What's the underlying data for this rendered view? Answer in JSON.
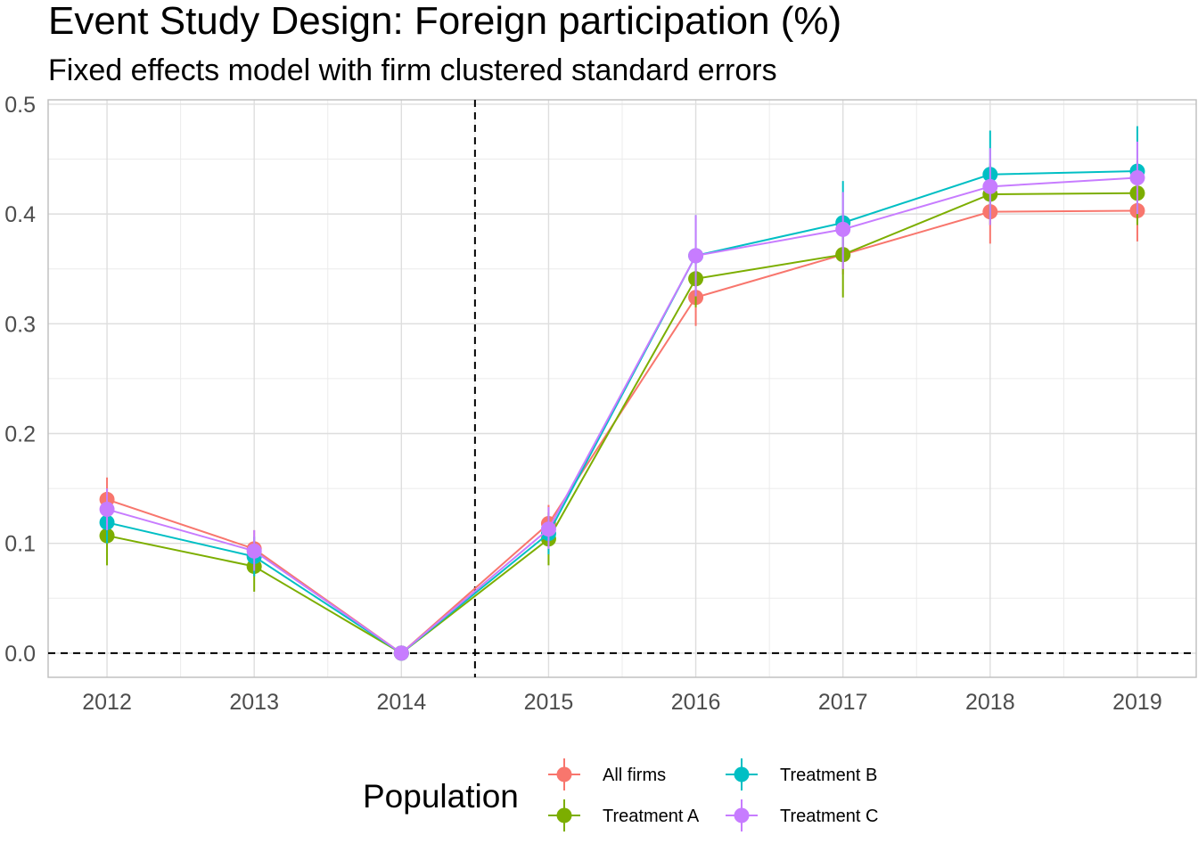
{
  "chart_data": {
    "type": "line",
    "title": "Event Study Design: Foreign participation (%)",
    "subtitle": "Fixed effects model with firm clustered standard errors",
    "xlabel": "",
    "ylabel": "",
    "categories": [
      "2012",
      "2013",
      "2014",
      "2015",
      "2016",
      "2017",
      "2018",
      "2019"
    ],
    "ylim": [
      -0.022,
      0.504
    ],
    "yticks": [
      0.0,
      0.1,
      0.2,
      0.3,
      0.4,
      0.5
    ],
    "ytick_labels": [
      "0.0",
      "0.1",
      "0.2",
      "0.3",
      "0.4",
      "0.5"
    ],
    "grid": true,
    "reference_lines": {
      "horizontal_y": 0.0,
      "vertical_between": [
        "2014",
        "2015"
      ],
      "style": "dashed"
    },
    "legend": {
      "title": "Population",
      "position": "bottom"
    },
    "series": [
      {
        "name": "All firms",
        "color": "#F8766D",
        "values": [
          0.14,
          0.095,
          0.0,
          0.118,
          0.324,
          0.363,
          0.402,
          0.403
        ],
        "lower": [
          0.12,
          0.078,
          0.0,
          0.1,
          0.298,
          0.345,
          0.373,
          0.375
        ],
        "upper": [
          0.16,
          0.112,
          0.0,
          0.135,
          0.35,
          0.382,
          0.43,
          0.43
        ]
      },
      {
        "name": "Treatment A",
        "color": "#7CAE00",
        "values": [
          0.107,
          0.079,
          0.0,
          0.104,
          0.341,
          0.363,
          0.418,
          0.419
        ],
        "lower": [
          0.08,
          0.056,
          0.0,
          0.08,
          0.315,
          0.324,
          0.39,
          0.39
        ],
        "upper": [
          0.134,
          0.1,
          0.0,
          0.128,
          0.368,
          0.398,
          0.446,
          0.448
        ]
      },
      {
        "name": "Treatment B",
        "color": "#00BFC4",
        "values": [
          0.119,
          0.088,
          0.0,
          0.109,
          0.362,
          0.392,
          0.436,
          0.439
        ],
        "lower": [
          0.1,
          0.07,
          0.0,
          0.09,
          0.325,
          0.355,
          0.395,
          0.4
        ],
        "upper": [
          0.138,
          0.106,
          0.0,
          0.128,
          0.399,
          0.43,
          0.476,
          0.48
        ]
      },
      {
        "name": "Treatment C",
        "color": "#C77CFF",
        "values": [
          0.131,
          0.093,
          0.0,
          0.113,
          0.362,
          0.386,
          0.425,
          0.433
        ],
        "lower": [
          0.112,
          0.075,
          0.0,
          0.095,
          0.325,
          0.35,
          0.39,
          0.4
        ],
        "upper": [
          0.15,
          0.112,
          0.0,
          0.133,
          0.399,
          0.42,
          0.46,
          0.466
        ]
      }
    ]
  }
}
